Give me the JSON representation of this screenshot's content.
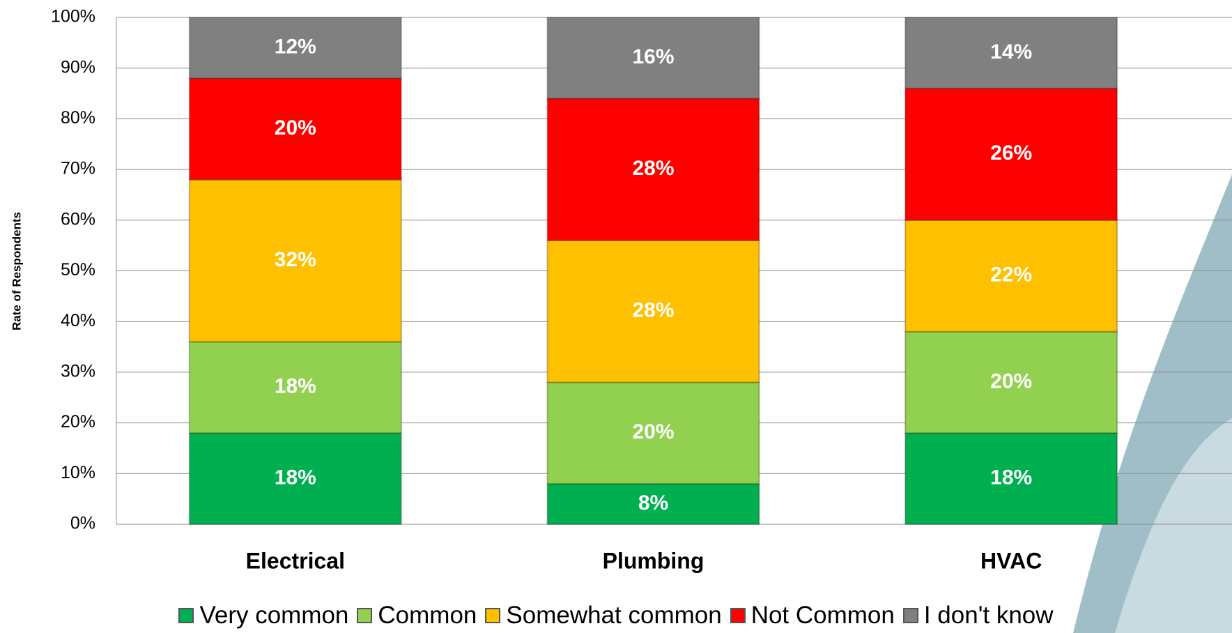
{
  "chart_data": {
    "type": "stacked-bar",
    "y_label": "Rate of Respondents",
    "categories": [
      "Electrical",
      "Plumbing",
      "HVAC"
    ],
    "series": [
      {
        "name": "Very common",
        "color": "#00b050",
        "values": [
          18,
          8,
          18
        ],
        "value_labels": [
          "18%",
          "8%",
          "18%"
        ]
      },
      {
        "name": "Common",
        "color": "#92d050",
        "values": [
          18,
          20,
          20
        ],
        "value_labels": [
          "18%",
          "20%",
          "20%"
        ]
      },
      {
        "name": "Somewhat common",
        "color": "#ffc000",
        "values": [
          32,
          28,
          22
        ],
        "value_labels": [
          "32%",
          "28%",
          "22%"
        ]
      },
      {
        "name": "Not Common",
        "color": "#ff0000",
        "values": [
          20,
          28,
          26
        ],
        "value_labels": [
          "20%",
          "28%",
          "26%"
        ]
      },
      {
        "name": "I don't know",
        "color": "#808080",
        "values": [
          12,
          16,
          14
        ],
        "value_labels": [
          "12%",
          "16%",
          "14%"
        ]
      }
    ],
    "ylim": [
      0,
      100
    ],
    "yticks": [
      {
        "value": 0,
        "label": "0%"
      },
      {
        "value": 10,
        "label": "10%"
      },
      {
        "value": 20,
        "label": "20%"
      },
      {
        "value": 30,
        "label": "30%"
      },
      {
        "value": 40,
        "label": "40%"
      },
      {
        "value": 50,
        "label": "50%"
      },
      {
        "value": 60,
        "label": "60%"
      },
      {
        "value": 70,
        "label": "70%"
      },
      {
        "value": 80,
        "label": "80%"
      },
      {
        "value": 90,
        "label": "90%"
      },
      {
        "value": 100,
        "label": "100%"
      }
    ],
    "grid": true,
    "legend": "bottom"
  }
}
